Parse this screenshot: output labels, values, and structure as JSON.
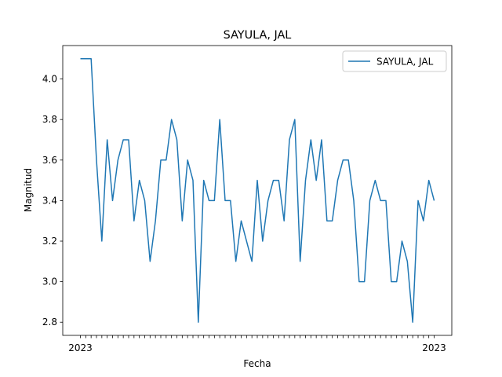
{
  "chart_data": {
    "type": "line",
    "title": "SAYULA, JAL",
    "xlabel": "Fecha",
    "ylabel": "Magnitud",
    "ylim": [
      2.735,
      4.165
    ],
    "yticks": [
      2.8,
      3.0,
      3.2,
      3.4,
      3.6,
      3.8,
      4.0
    ],
    "ytick_labels": [
      "2.8",
      "3.0",
      "3.2",
      "3.4",
      "3.6",
      "3.8",
      "4.0"
    ],
    "grid": false,
    "legend_position": "upper right",
    "xtick_first_label": "2023",
    "xtick_last_label": "2023",
    "series": [
      {
        "name": "SAYULA, JAL",
        "color": "#1f77b4",
        "values": [
          4.1,
          4.1,
          4.1,
          3.6,
          3.2,
          3.7,
          3.4,
          3.6,
          3.7,
          3.7,
          3.3,
          3.5,
          3.4,
          3.1,
          3.3,
          3.6,
          3.6,
          3.8,
          3.7,
          3.3,
          3.6,
          3.5,
          2.8,
          3.5,
          3.4,
          3.4,
          3.8,
          3.4,
          3.4,
          3.1,
          3.3,
          3.2,
          3.1,
          3.5,
          3.2,
          3.4,
          3.5,
          3.5,
          3.3,
          3.7,
          3.8,
          3.1,
          3.5,
          3.7,
          3.5,
          3.7,
          3.3,
          3.3,
          3.5,
          3.6,
          3.6,
          3.4,
          3.0,
          3.0,
          3.4,
          3.5,
          3.4,
          3.4,
          3.0,
          3.0,
          3.2,
          3.1,
          2.8,
          3.4,
          3.3,
          3.5,
          3.4
        ]
      }
    ]
  }
}
